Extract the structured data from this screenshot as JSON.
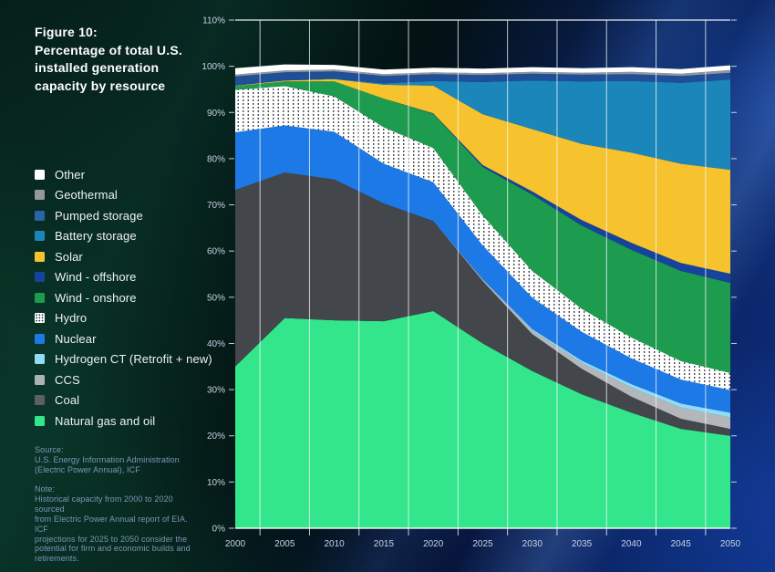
{
  "title": {
    "figure_label": "Figure 10:",
    "lines": [
      "Percentage of total U.S.",
      "installed generation",
      "capacity by resource"
    ]
  },
  "source": {
    "heading": "Source:",
    "lines": [
      "U.S. Energy Information Administration",
      "(Electric Power Annual), ICF"
    ]
  },
  "note": {
    "heading": "Note:",
    "lines": [
      "Historical capacity from 2000 to 2020 sourced",
      "from Electric Power Annual report of EIA. ICF",
      "projections for 2025 to 2050 consider the",
      "potential for firm and economic builds and",
      "retirements."
    ]
  },
  "chart_data": {
    "type": "area",
    "stacked": true,
    "unit": "percent of total installed capacity",
    "x": [
      2000,
      2005,
      2010,
      2015,
      2020,
      2025,
      2030,
      2035,
      2040,
      2045,
      2050
    ],
    "x_gridlines": [
      2002.5,
      2007.5,
      2012.5,
      2017.5,
      2022.5,
      2027.5,
      2032.5,
      2037.5,
      2042.5,
      2047.5
    ],
    "y_axis": {
      "min": 0,
      "max": 110,
      "tick_step": 10,
      "suffix": "%"
    },
    "legend_position": "left",
    "grid": "vertical-only",
    "series": [
      {
        "name": "natural-gas-oil",
        "label": "Natural gas and oil",
        "color": "#33e68c",
        "values": [
          35.0,
          45.5,
          45.0,
          44.8,
          47.0,
          40.0,
          34.0,
          29.0,
          25.0,
          21.5,
          20.0
        ]
      },
      {
        "name": "coal",
        "label": "Coal",
        "color": "#43464b",
        "legend_color": "#5d5f63",
        "values": [
          38.2,
          31.5,
          30.5,
          25.5,
          19.5,
          13.5,
          8.0,
          5.5,
          3.5,
          2.2,
          1.5
        ]
      },
      {
        "name": "ccs",
        "label": "CCS",
        "color": "#b4b7ba",
        "legend_color": "#aeb1b4",
        "values": [
          0,
          0,
          0,
          0,
          0,
          0.3,
          0.8,
          1.3,
          2.0,
          2.4,
          2.5
        ]
      },
      {
        "name": "hydrogen-ct",
        "label": "Hydrogen CT (Retrofit + new)",
        "color": "#8edcf7",
        "values": [
          0,
          0,
          0,
          0,
          0,
          0.1,
          0.3,
          0.5,
          0.7,
          0.9,
          1.0
        ]
      },
      {
        "name": "nuclear",
        "label": "Nuclear",
        "color": "#1d79e6",
        "values": [
          12.5,
          10.2,
          10.3,
          8.6,
          8.4,
          7.3,
          6.8,
          6.2,
          5.6,
          5.2,
          4.9
        ]
      },
      {
        "name": "hydro",
        "label": "Hydro",
        "pattern": "dots",
        "color": "#ffffff",
        "values": [
          9.2,
          8.5,
          7.7,
          7.9,
          7.4,
          6.5,
          5.8,
          5.0,
          4.5,
          4.0,
          3.7
        ]
      },
      {
        "name": "wind-onshore",
        "label": "Wind - onshore",
        "color": "#1d9b4e",
        "values": [
          0.8,
          1.0,
          3.2,
          6.2,
          7.4,
          10.5,
          16.5,
          18.0,
          19.0,
          19.5,
          19.5
        ]
      },
      {
        "name": "wind-offshore",
        "label": "Wind - offshore",
        "color": "#16439c",
        "values": [
          0,
          0,
          0,
          0,
          0.1,
          0.4,
          0.7,
          1.2,
          1.5,
          1.7,
          2.0
        ]
      },
      {
        "name": "solar",
        "label": "Solar",
        "color": "#f6c22d",
        "values": [
          0.1,
          0.2,
          0.5,
          3.0,
          6.0,
          11.0,
          13.5,
          16.5,
          19.5,
          21.5,
          22.5
        ]
      },
      {
        "name": "battery-storage",
        "label": "Battery storage",
        "color": "#1b86ba",
        "values": [
          0,
          0,
          0.1,
          0.3,
          1.0,
          7.0,
          10.5,
          13.5,
          15.5,
          17.5,
          19.5
        ]
      },
      {
        "name": "pumped-storage",
        "label": "Pumped storage",
        "color": "#1e4f97",
        "legend_color": "#2a63ab",
        "values": [
          2.0,
          1.8,
          1.6,
          1.6,
          1.5,
          1.5,
          1.5,
          1.5,
          1.5,
          1.5,
          1.5
        ]
      },
      {
        "name": "geothermal",
        "label": "Geothermal",
        "color": "#9096a0",
        "legend_color": "#95999e",
        "values": [
          0.4,
          0.4,
          0.4,
          0.4,
          0.4,
          0.4,
          0.4,
          0.4,
          0.5,
          0.5,
          0.6
        ]
      },
      {
        "name": "other",
        "label": "Other",
        "color": "#ffffff",
        "values": [
          1.4,
          1.3,
          1.0,
          1.0,
          1.0,
          1.0,
          1.0,
          1.0,
          1.0,
          1.0,
          1.0
        ]
      }
    ],
    "style": {
      "gridline_color": "rgba(243,246,249,0.78)",
      "axis_line_color": "rgba(255,255,255,0.92)",
      "tick_color": "rgba(230,237,244,0.85)",
      "axis_label_color": "#c6d2e2"
    }
  }
}
